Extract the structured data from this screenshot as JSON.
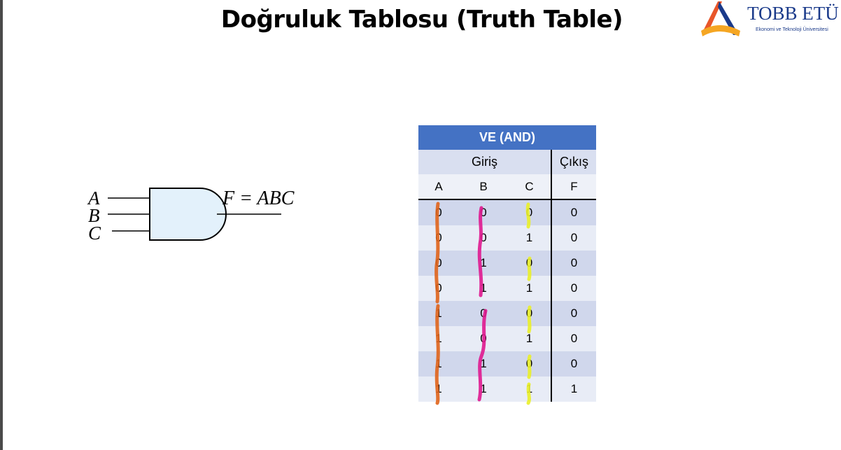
{
  "slide": {
    "title": "Doğruluk Tablosu (Truth Table)"
  },
  "logo": {
    "name": "TOBB ETÜ",
    "subtitle": "Ekonomi ve Teknoloji Üniversitesi"
  },
  "gate": {
    "type": "AND",
    "inputs": [
      "A",
      "B",
      "C"
    ],
    "output_expression": "F = ABC"
  },
  "truth_table": {
    "title": "VE (AND)",
    "input_group": "Giriş",
    "output_group": "Çıkış",
    "columns": [
      "A",
      "B",
      "C",
      "F"
    ],
    "rows": [
      [
        "0",
        "0",
        "0",
        "0"
      ],
      [
        "0",
        "0",
        "1",
        "0"
      ],
      [
        "0",
        "1",
        "0",
        "0"
      ],
      [
        "0",
        "1",
        "1",
        "0"
      ],
      [
        "1",
        "0",
        "0",
        "0"
      ],
      [
        "1",
        "0",
        "1",
        "0"
      ],
      [
        "1",
        "1",
        "0",
        "0"
      ],
      [
        "1",
        "1",
        "1",
        "1"
      ]
    ]
  },
  "colors": {
    "header_blue": "#4472c4",
    "row_dark": "#d0d7ec",
    "row_light": "#e8ecf6",
    "gate_fill": "#e3f1fb",
    "marker_orange": "#e0641b",
    "marker_magenta": "#e0198f",
    "marker_yellow": "#eaf02a"
  }
}
